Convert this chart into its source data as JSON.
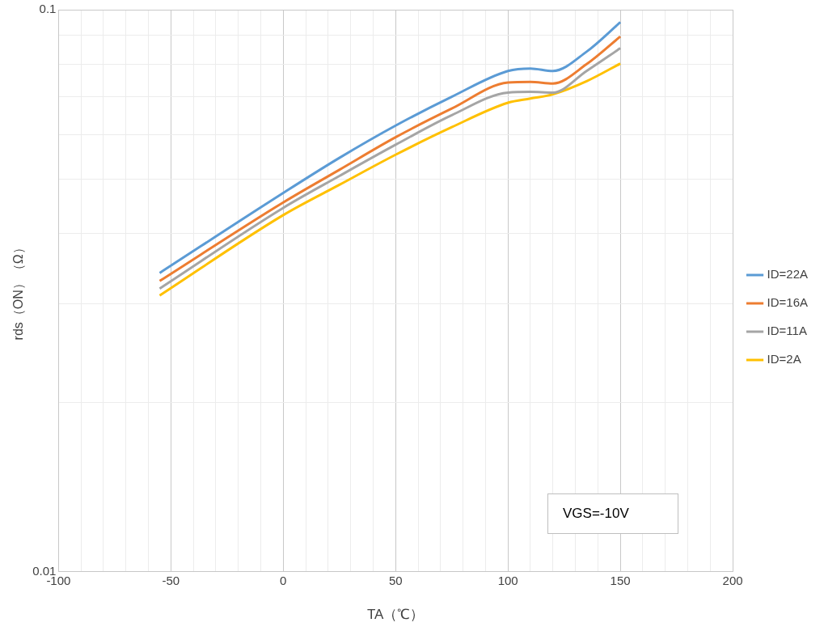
{
  "chart_data": {
    "type": "line",
    "xlabel": "TA（℃）",
    "ylabel": "rds（ON）（Ω）",
    "log": "y",
    "x": [
      -55,
      0,
      25,
      50,
      75,
      100,
      110,
      120,
      135,
      150
    ],
    "xlim": [
      -100,
      200
    ],
    "xticks": [
      -100,
      {
        "value": -90,
        "label": null
      },
      {
        "value": -80,
        "label": null
      },
      {
        "value": -70,
        "label": null
      },
      {
        "value": -60,
        "label": null
      },
      -50,
      {
        "value": -40,
        "label": null
      },
      {
        "value": -30,
        "label": null
      },
      {
        "value": -20,
        "label": null
      },
      {
        "value": -10,
        "label": null
      },
      0,
      {
        "value": 10,
        "label": null
      },
      {
        "value": 20,
        "label": null
      },
      {
        "value": 30,
        "label": null
      },
      {
        "value": 40,
        "label": null
      },
      50,
      {
        "value": 60,
        "label": null
      },
      {
        "value": 70,
        "label": null
      },
      {
        "value": 80,
        "label": null
      },
      {
        "value": 90,
        "label": null
      },
      100,
      {
        "value": 110,
        "label": null
      },
      {
        "value": 120,
        "label": null
      },
      {
        "value": 130,
        "label": null
      },
      {
        "value": 140,
        "label": null
      },
      150,
      {
        "value": 160,
        "label": null
      },
      {
        "value": 170,
        "label": null
      },
      {
        "value": 180,
        "label": null
      },
      {
        "value": 190,
        "label": null
      },
      200
    ],
    "ylim": [
      0.01,
      0.1
    ],
    "yticks": [
      0.01,
      {
        "value": 0.02,
        "label": null
      },
      {
        "value": 0.03,
        "label": null
      },
      {
        "value": 0.04,
        "label": null
      },
      {
        "value": 0.05,
        "label": null
      },
      {
        "value": 0.06,
        "label": null
      },
      {
        "value": 0.07,
        "label": null
      },
      {
        "value": 0.08,
        "label": null
      },
      {
        "value": 0.09,
        "label": null
      },
      0.1
    ],
    "grid": true,
    "legend": "right",
    "marker": "none",
    "line_style": "solid",
    "annotations": [
      "VGS=-10V"
    ],
    "series": [
      {
        "name": "ID=22A",
        "color": "#5b9bd5",
        "values": [
          0.034,
          0.0472,
          0.0545,
          0.0622,
          0.07,
          0.0778,
          0.0786,
          0.0778,
          0.0842,
          0.095
        ]
      },
      {
        "name": "ID=16A",
        "color": "#ed7d31",
        "values": [
          0.0329,
          0.0454,
          0.0519,
          0.0593,
          0.0667,
          0.0742,
          0.0744,
          0.0739,
          0.08,
          0.0896
        ]
      },
      {
        "name": "ID=11A",
        "color": "#a5a5a5",
        "values": [
          0.0319,
          0.0444,
          0.0506,
          0.0575,
          0.0649,
          0.0712,
          0.0714,
          0.0712,
          0.0778,
          0.0854
        ]
      },
      {
        "name": "ID=2A",
        "color": "#ffc000",
        "values": [
          0.031,
          0.0431,
          0.0488,
          0.0552,
          0.0618,
          0.0683,
          0.0695,
          0.0707,
          0.0746,
          0.0802
        ]
      }
    ]
  }
}
